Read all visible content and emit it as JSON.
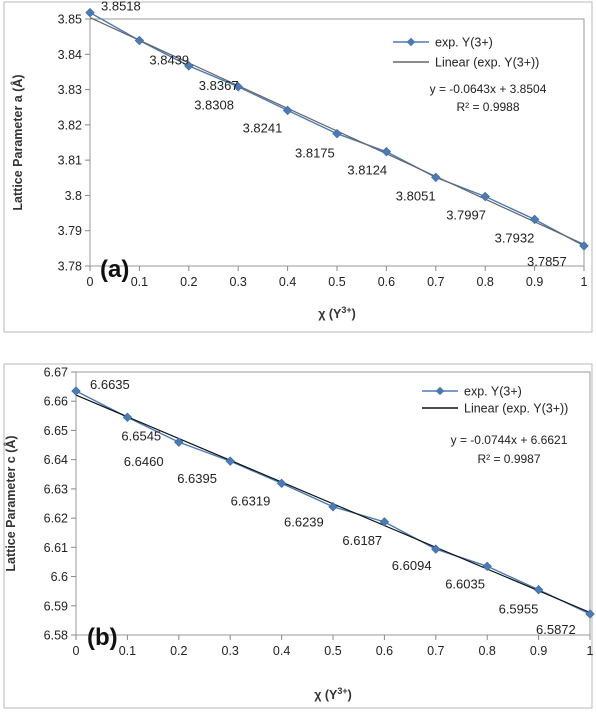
{
  "chart_data": [
    {
      "type": "line",
      "panel_label": "(a)",
      "xlabel": "χ (Y3+)",
      "xlabel_main": "χ (Y",
      "xlabel_sup": "3+",
      "xlabel_close": ")",
      "ylabel": "Lattice Parameter a (Å)",
      "xlim": [
        0,
        1
      ],
      "ylim": [
        3.78,
        3.85
      ],
      "xticks": [
        "0",
        "0.1",
        "0.2",
        "0.3",
        "0.4",
        "0.5",
        "0.6",
        "0.7",
        "0.8",
        "0.9",
        "1"
      ],
      "yticks": [
        "3.78",
        "3.79",
        "3.8",
        "3.81",
        "3.82",
        "3.83",
        "3.84",
        "3.85"
      ],
      "series": [
        {
          "name": "exp. Y(3+)",
          "color": "#4a7bb7",
          "marker": "diamond",
          "x": [
            0,
            0.1,
            0.2,
            0.3,
            0.4,
            0.5,
            0.6,
            0.7,
            0.8,
            0.9,
            1
          ],
          "y": [
            3.8518,
            3.8439,
            3.8367,
            3.8308,
            3.8241,
            3.8175,
            3.8124,
            3.8051,
            3.7997,
            3.7932,
            3.7857
          ],
          "data_labels": [
            "3.8518",
            "3.8439",
            "3.8367",
            "3.8308",
            "3.8241",
            "3.8175",
            "3.8124",
            "3.8051",
            "3.7997",
            "3.7932",
            "3.7857"
          ]
        },
        {
          "name": "Linear (exp. Y(3+))",
          "color": "#666666",
          "type": "trendline",
          "slope": -0.0643,
          "intercept": 3.8504
        }
      ],
      "equation": "y = -0.0643x + 3.8504",
      "r_squared": "R² = 0.9988",
      "legend_position": "top-right",
      "grid": false
    },
    {
      "type": "line",
      "panel_label": "(b)",
      "xlabel": "χ (Y3+)",
      "xlabel_main": "χ (Y",
      "xlabel_sup": "3+",
      "xlabel_close": ")",
      "ylabel": "Lattice Parameter c (Å)",
      "xlim": [
        0,
        1
      ],
      "ylim": [
        6.58,
        6.67
      ],
      "xticks": [
        "0",
        "0.1",
        "0.2",
        "0.3",
        "0.4",
        "0.5",
        "0.6",
        "0.7",
        "0.8",
        "0.9",
        "1"
      ],
      "yticks": [
        "6.58",
        "6.59",
        "6.6",
        "6.61",
        "6.62",
        "6.63",
        "6.64",
        "6.65",
        "6.66",
        "6.67"
      ],
      "series": [
        {
          "name": "exp. Y(3+)",
          "color": "#4a7bb7",
          "marker": "diamond",
          "x": [
            0,
            0.1,
            0.2,
            0.3,
            0.4,
            0.5,
            0.6,
            0.7,
            0.8,
            0.9,
            1
          ],
          "y": [
            6.6635,
            6.6545,
            6.646,
            6.6395,
            6.6319,
            6.6239,
            6.6187,
            6.6094,
            6.6035,
            6.5955,
            6.5872
          ],
          "data_labels": [
            "6.6635",
            "6.6545",
            "6.6460",
            "6.6395",
            "6.6319",
            "6.6239",
            "6.6187",
            "6.6094",
            "6.6035",
            "6.5955",
            "6.5872"
          ]
        },
        {
          "name": "Linear (exp. Y(3+))",
          "color": "#111111",
          "type": "trendline",
          "slope": -0.0744,
          "intercept": 6.6621
        }
      ],
      "equation": "y = -0.0744x + 6.6621",
      "r_squared": "R² = 0.9987",
      "legend_position": "top-right",
      "grid": false
    }
  ]
}
